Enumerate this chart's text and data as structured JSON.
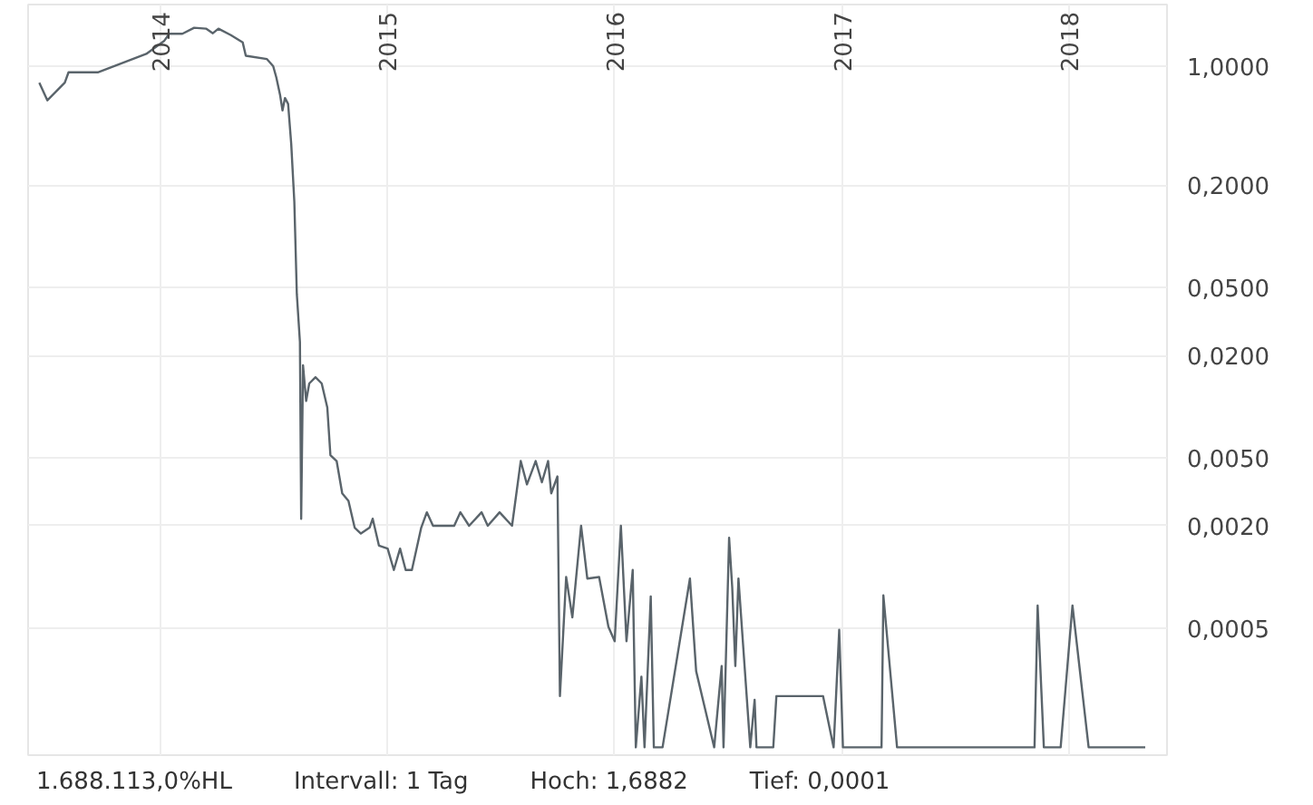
{
  "chart_data": {
    "type": "line",
    "log": "y",
    "grid": true,
    "marker": "none",
    "line_style": "solid",
    "x": [
      "2013-06-20",
      "2013-07-03",
      "2013-07-31",
      "2013-08-06",
      "2013-09-22",
      "2013-12-09",
      "2014-01-07",
      "2014-01-15",
      "2014-02-05",
      "2014-02-24",
      "2014-03-15",
      "2014-03-26",
      "2014-04-04",
      "2014-04-24",
      "2014-05-13",
      "2014-05-18",
      "2014-06-21",
      "2014-07-01",
      "2014-07-06",
      "2014-07-12",
      "2014-07-16",
      "2014-07-20",
      "2014-07-25",
      "2014-07-30",
      "2014-08-04",
      "2014-08-08",
      "2014-08-13",
      "2014-08-15",
      "2014-08-18",
      "2014-08-23",
      "2014-08-28",
      "2014-09-07",
      "2014-09-17",
      "2014-09-26",
      "2014-10-01",
      "2014-10-11",
      "2014-10-20",
      "2014-10-30",
      "2014-11-09",
      "2014-11-19",
      "2014-12-03",
      "2014-12-08",
      "2014-12-18",
      "2015-01-01",
      "2015-01-11",
      "2015-01-21",
      "2015-01-30",
      "2015-02-09",
      "2015-02-24",
      "2015-03-05",
      "2015-03-15",
      "2015-04-18",
      "2015-04-28",
      "2015-05-12",
      "2015-06-01",
      "2015-06-11",
      "2015-06-30",
      "2015-07-20",
      "2015-08-03",
      "2015-08-13",
      "2015-08-27",
      "2015-09-06",
      "2015-09-16",
      "2015-09-21",
      "2015-10-01",
      "2015-10-05",
      "2015-10-15",
      "2015-10-25",
      "2015-11-08",
      "2015-11-18",
      "2015-12-07",
      "2015-12-22",
      "2016-01-01",
      "2016-01-11",
      "2016-01-20",
      "2016-01-30",
      "2016-02-04",
      "2016-02-13",
      "2016-02-18",
      "2016-02-28",
      "2016-03-04",
      "2016-03-18",
      "2016-05-01",
      "2016-05-11",
      "2016-06-09",
      "2016-06-21",
      "2016-06-24",
      "2016-07-03",
      "2016-07-08",
      "2016-07-13",
      "2016-07-18",
      "2016-08-06",
      "2016-08-13",
      "2016-08-16",
      "2016-09-12",
      "2016-09-17",
      "2016-12-01",
      "2016-12-18",
      "2016-12-27",
      "2017-01-02",
      "2017-03-05",
      "2017-03-08",
      "2017-03-30",
      "2017-11-06",
      "2017-11-11",
      "2017-11-21",
      "2017-12-18",
      "2018-01-06",
      "2018-02-01",
      "2018-05-03"
    ],
    "series": [
      {
        "color": "#5a646b",
        "values": [
          0.8,
          0.63,
          0.8,
          0.92,
          0.92,
          1.18,
          1.41,
          1.55,
          1.55,
          1.68,
          1.66,
          1.56,
          1.66,
          1.52,
          1.38,
          1.15,
          1.1,
          1.0,
          0.86,
          0.68,
          0.55,
          0.65,
          0.6,
          0.35,
          0.16,
          0.046,
          0.024,
          0.0022,
          0.0175,
          0.0108,
          0.0137,
          0.0149,
          0.0137,
          0.0099,
          0.0052,
          0.0048,
          0.0031,
          0.0028,
          0.00195,
          0.0018,
          0.00195,
          0.0022,
          0.00153,
          0.00147,
          0.0011,
          0.00147,
          0.0011,
          0.0011,
          0.00195,
          0.0024,
          0.002,
          0.002,
          0.0024,
          0.002,
          0.0024,
          0.002,
          0.0024,
          0.002,
          0.0048,
          0.0035,
          0.0048,
          0.0036,
          0.0048,
          0.0031,
          0.0039,
          0.0002,
          0.001,
          0.00058,
          0.002,
          0.00098,
          0.001,
          0.00051,
          0.00042,
          0.002,
          0.00042,
          0.0011,
          0.0001,
          0.00026,
          0.0001,
          0.00077,
          0.0001,
          0.0001,
          0.00098,
          0.00028,
          0.0001,
          0.0003,
          0.0001,
          0.0017,
          0.00087,
          0.0003,
          0.00098,
          0.0001,
          0.00019,
          0.0001,
          0.0001,
          0.0002,
          0.0002,
          0.0001,
          0.00049,
          0.0001,
          0.0001,
          0.00078,
          0.0001,
          0.0001,
          0.00068,
          0.0001,
          0.0001,
          0.00068,
          0.0001,
          0.0001
        ]
      }
    ],
    "xlim": [
      "2013-06-02",
      "2018-06-07"
    ],
    "xticks": [
      {
        "value": "2014",
        "label": "2014"
      },
      {
        "value": "2015",
        "label": "2015"
      },
      {
        "value": "2016",
        "label": "2016"
      },
      {
        "value": "2017",
        "label": "2017"
      },
      {
        "value": "2018",
        "label": "2018"
      }
    ],
    "ylim": [
      9e-05,
      2.3
    ],
    "yticks": [
      {
        "value": 1,
        "label": "1,0000"
      },
      {
        "value": 0.2,
        "label": "0,2000"
      },
      {
        "value": 0.05,
        "label": "0,0500"
      },
      {
        "value": 0.02,
        "label": "0,0200"
      },
      {
        "value": 0.005,
        "label": "0,0050"
      },
      {
        "value": 0.002,
        "label": "0,0020"
      },
      {
        "value": 0.0005,
        "label": "0,0005"
      }
    ],
    "annotations": [
      "1.688.113,0%HL",
      "Intervall: 1 Tag",
      "Hoch: 1,6882",
      "Tief: 0,0001"
    ]
  }
}
